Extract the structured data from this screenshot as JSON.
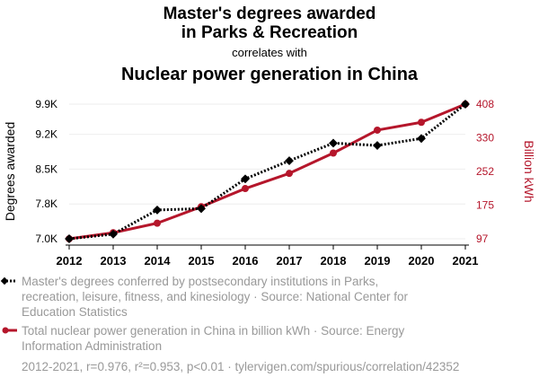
{
  "header": {
    "title_line1": "Master's degrees awarded",
    "title_line2": "in Parks & Recreation",
    "subtitle": "correlates with",
    "title2": "Nuclear power generation in China"
  },
  "colors": {
    "series1": "#000000",
    "series2": "#b5162b",
    "grid": "#eeeeee",
    "legend_text": "#999999"
  },
  "legend": {
    "entry1_lines": [
      "Master's degrees conferred by postsecondary institutions in Parks,",
      "recreation, leisure, fitness, and kinesiology · Source: National Center for",
      "Education Statistics"
    ],
    "entry2_lines": [
      "Total nuclear power generation in China in billion kWh · Source: Energy",
      "Information Administration"
    ]
  },
  "footer": "2012-2021, r=0.976, r²=0.953, p<0.01 · tylervigen.com/spurious/correlation/42352",
  "chart_data": {
    "type": "line",
    "x": [
      2012,
      2013,
      2014,
      2015,
      2016,
      2017,
      2018,
      2019,
      2020,
      2021
    ],
    "xlabel": "",
    "ylabel_left": "Degrees awarded",
    "ylabel_right": "Billion kWh",
    "left_axis": {
      "ylim": [
        7000,
        9900
      ],
      "ticks": [
        7000,
        7750,
        8500,
        9250,
        9900
      ],
      "tick_labels": [
        "7.0K",
        "7.8K",
        "8.5K",
        "9.2K",
        "9.9K"
      ]
    },
    "right_axis": {
      "ylim": [
        97,
        408
      ],
      "ticks": [
        97,
        175,
        252,
        330,
        408
      ],
      "tick_labels": [
        "97",
        "175",
        "252",
        "330",
        "408"
      ]
    },
    "series": [
      {
        "axis": "left",
        "style": "dotted",
        "marker": "diamond",
        "values": [
          7000,
          7100,
          7620,
          7650,
          8290,
          8680,
          9060,
          9010,
          9160,
          9900
        ]
      },
      {
        "axis": "right",
        "style": "solid",
        "marker": "circle",
        "values": [
          97,
          111,
          133,
          171,
          213,
          248,
          295,
          348,
          366,
          408
        ]
      }
    ],
    "grid": true,
    "legend_position": "bottom"
  }
}
